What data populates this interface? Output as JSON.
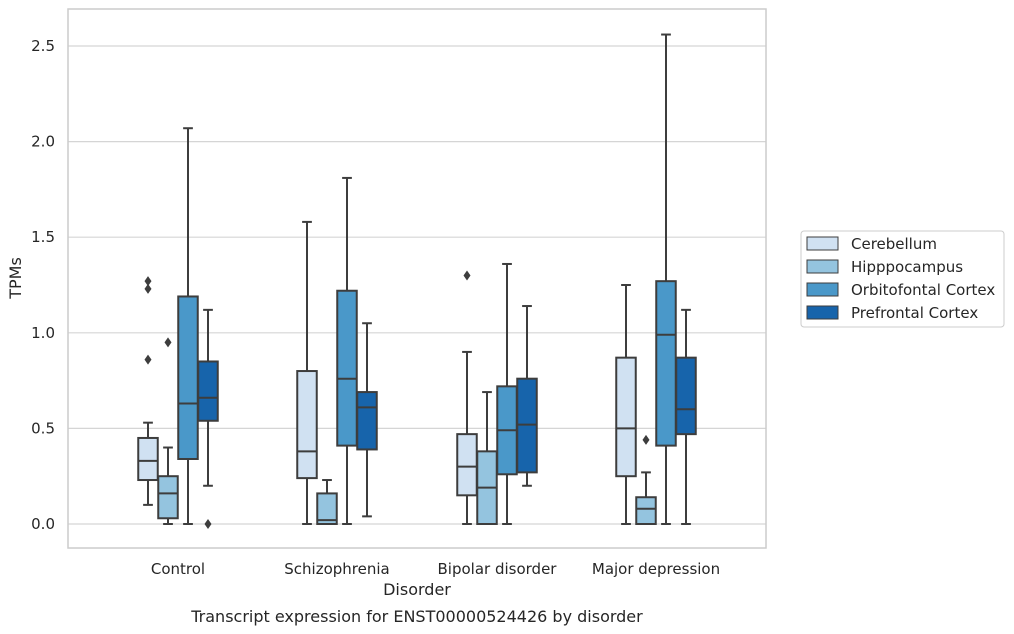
{
  "chart_data": {
    "type": "boxplot",
    "caption": "Transcript expression for ENST00000524426 by disorder",
    "xlabel": "Disorder",
    "ylabel": "TPMs",
    "ylim": [
      -0.12,
      2.68
    ],
    "yticks": [
      "0.0",
      "0.5",
      "1.0",
      "1.5",
      "2.0",
      "2.5"
    ],
    "ytick_values": [
      0,
      0.5,
      1.0,
      1.5,
      2.0,
      2.5
    ],
    "grid": "horizontal",
    "legend_position": "right",
    "categories": [
      "Control",
      "Schizophrenia",
      "Bipolar disorder",
      "Major depression"
    ],
    "series": [
      {
        "name": "Cerebellum",
        "color": "#d0e1f2",
        "boxes": [
          {
            "whislo": 0.1,
            "q1": 0.23,
            "med": 0.33,
            "q3": 0.45,
            "whishi": 0.53,
            "fliers": [
              0.86,
              1.23,
              1.27
            ]
          },
          {
            "whislo": 0.0,
            "q1": 0.24,
            "med": 0.38,
            "q3": 0.8,
            "whishi": 1.58,
            "fliers": []
          },
          {
            "whislo": 0.0,
            "q1": 0.15,
            "med": 0.3,
            "q3": 0.47,
            "whishi": 0.9,
            "fliers": [
              1.3
            ]
          },
          {
            "whislo": 0.0,
            "q1": 0.25,
            "med": 0.5,
            "q3": 0.87,
            "whishi": 1.25,
            "fliers": []
          }
        ]
      },
      {
        "name": "Hipppocampus",
        "color": "#94c4df",
        "boxes": [
          {
            "whislo": 0.0,
            "q1": 0.03,
            "med": 0.16,
            "q3": 0.25,
            "whishi": 0.4,
            "fliers": [
              0.95
            ]
          },
          {
            "whislo": 0.0,
            "q1": 0.0,
            "med": 0.02,
            "q3": 0.16,
            "whishi": 0.23,
            "fliers": []
          },
          {
            "whislo": 0.0,
            "q1": 0.0,
            "med": 0.19,
            "q3": 0.38,
            "whishi": 0.69,
            "fliers": []
          },
          {
            "whislo": 0.0,
            "q1": 0.0,
            "med": 0.08,
            "q3": 0.14,
            "whishi": 0.27,
            "fliers": [
              0.44
            ]
          }
        ]
      },
      {
        "name": "Orbitofontal Cortex",
        "color": "#4a98c9",
        "boxes": [
          {
            "whislo": 0.0,
            "q1": 0.34,
            "med": 0.63,
            "q3": 1.19,
            "whishi": 2.07,
            "fliers": []
          },
          {
            "whislo": 0.0,
            "q1": 0.41,
            "med": 0.76,
            "q3": 1.22,
            "whishi": 1.81,
            "fliers": []
          },
          {
            "whislo": 0.0,
            "q1": 0.26,
            "med": 0.49,
            "q3": 0.72,
            "whishi": 1.36,
            "fliers": []
          },
          {
            "whislo": 0.0,
            "q1": 0.41,
            "med": 0.99,
            "q3": 1.27,
            "whishi": 2.56,
            "fliers": []
          }
        ]
      },
      {
        "name": "Prefrontal Cortex",
        "color": "#1764ab",
        "boxes": [
          {
            "whislo": 0.2,
            "q1": 0.54,
            "med": 0.66,
            "q3": 0.85,
            "whishi": 1.12,
            "fliers": [
              0.0
            ]
          },
          {
            "whislo": 0.04,
            "q1": 0.39,
            "med": 0.61,
            "q3": 0.69,
            "whishi": 1.05,
            "fliers": []
          },
          {
            "whislo": 0.2,
            "q1": 0.27,
            "med": 0.52,
            "q3": 0.76,
            "whishi": 1.14,
            "fliers": []
          },
          {
            "whislo": 0.0,
            "q1": 0.47,
            "med": 0.6,
            "q3": 0.87,
            "whishi": 1.12,
            "fliers": []
          }
        ]
      }
    ]
  }
}
